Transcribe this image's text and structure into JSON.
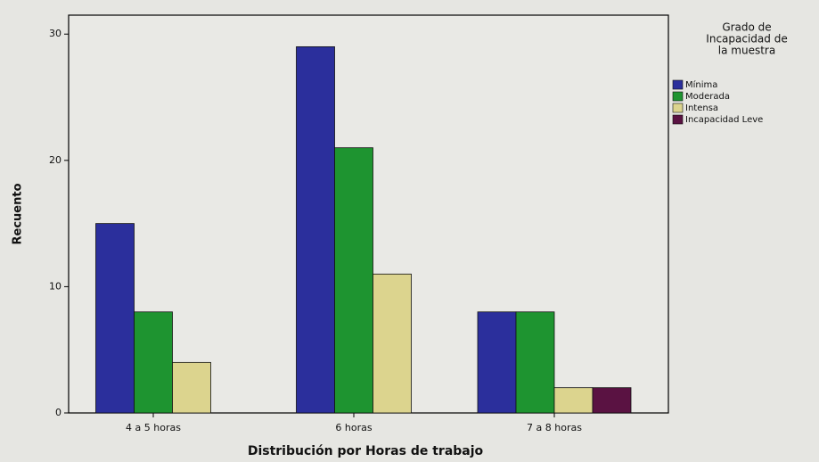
{
  "chart_data": {
    "type": "bar",
    "x_label": "Distribución por Horas de trabajo",
    "y_label": "Recuento",
    "legend_title": [
      "Grado de",
      "Incapacidad de",
      "la muestra"
    ],
    "categories": [
      "4 a 5 horas",
      "6 horas",
      "7 a 8 horas"
    ],
    "series": [
      {
        "name": "Mínima",
        "color": "#2b2f9c",
        "values": [
          15,
          29,
          8
        ]
      },
      {
        "name": "Moderada",
        "color": "#1e9430",
        "values": [
          8,
          21,
          8
        ]
      },
      {
        "name": "Intensa",
        "color": "#dcd48e",
        "values": [
          4,
          11,
          2
        ]
      },
      {
        "name": "Incapacidad Leve",
        "color": "#5a1242",
        "values": [
          null,
          null,
          2
        ]
      }
    ],
    "ylim": [
      0,
      31.5
    ],
    "yticks": [
      0,
      10,
      20,
      30
    ],
    "legend": "right"
  }
}
